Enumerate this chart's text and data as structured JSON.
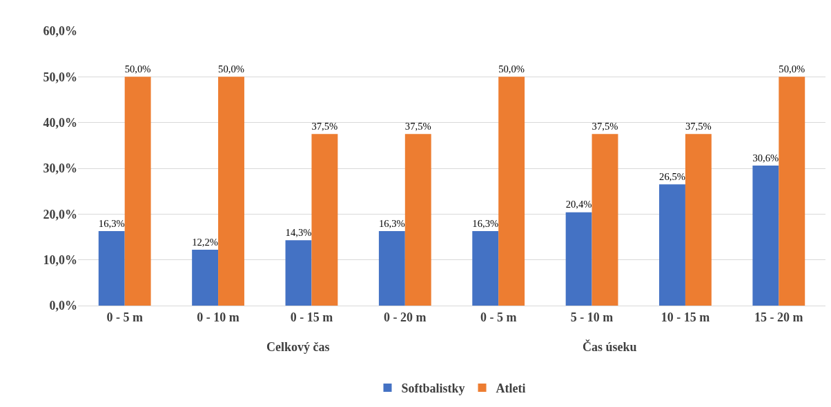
{
  "chart_data": {
    "type": "bar",
    "categories": [
      "0 - 5 m",
      "0 - 10 m",
      "0 - 15 m",
      "0 - 20 m",
      "0 - 5 m",
      "5 - 10 m",
      "10 - 15 m",
      "15 - 20 m"
    ],
    "series": [
      {
        "name": "Softbalistky",
        "color": "#4472c4",
        "values": [
          16.3,
          12.2,
          14.3,
          16.3,
          16.3,
          20.4,
          26.5,
          30.6
        ],
        "value_labels": [
          "16,3%",
          "12,2%",
          "14,3%",
          "16,3%",
          "16,3%",
          "20,4%",
          "26,5%",
          "30,6%"
        ]
      },
      {
        "name": "Atleti",
        "color": "#ed7d31",
        "values": [
          50.0,
          50.0,
          37.5,
          37.5,
          50.0,
          37.5,
          37.5,
          50.0
        ],
        "value_labels": [
          "50,0%",
          "50,0%",
          "37,5%",
          "37,5%",
          "50,0%",
          "37,5%",
          "37,5%",
          "50,0%"
        ]
      }
    ],
    "ylim": [
      0,
      60
    ],
    "yticks": [
      {
        "value": 0,
        "label": "0,0%"
      },
      {
        "value": 10,
        "label": "10,0%"
      },
      {
        "value": 20,
        "label": "20,0%"
      },
      {
        "value": 30,
        "label": "30,0%"
      },
      {
        "value": 40,
        "label": "40,0%"
      },
      {
        "value": 50,
        "label": "50,0%"
      },
      {
        "value": 60,
        "label": "60,0%"
      }
    ],
    "annotations": [
      "Celkový čas",
      "Čas úseku"
    ],
    "grid": "y",
    "legend": "bottom"
  }
}
